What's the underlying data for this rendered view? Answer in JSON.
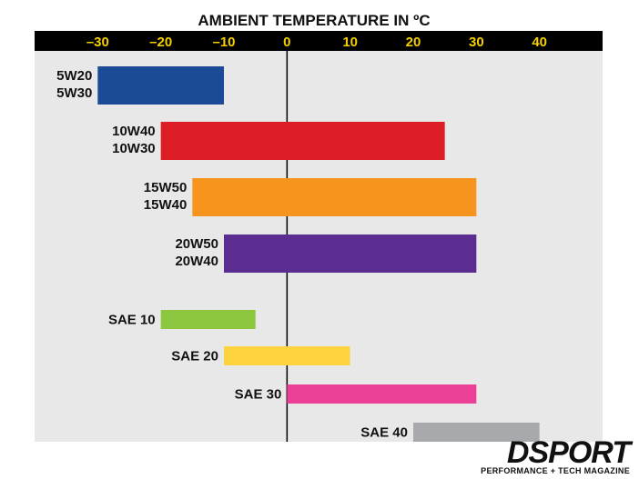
{
  "chart_data": {
    "type": "bar",
    "orientation": "horizontal-range",
    "title": "AMBIENT TEMPERATURE IN ºC",
    "xlim": [
      -40,
      50
    ],
    "ticks": [
      -30,
      -20,
      -10,
      0,
      10,
      20,
      30,
      40
    ],
    "tick_labels": [
      "–30",
      "–20",
      "–10",
      "0",
      "10",
      "20",
      "30",
      "40"
    ],
    "series": [
      {
        "labels": [
          "5W20",
          "5W30"
        ],
        "start": -30,
        "end": -10,
        "color": "#1b4a96"
      },
      {
        "labels": [
          "10W40",
          "10W30"
        ],
        "start": -20,
        "end": 25,
        "color": "#dd1e26"
      },
      {
        "labels": [
          "15W50",
          "15W40"
        ],
        "start": -15,
        "end": 30,
        "color": "#f7941e"
      },
      {
        "labels": [
          "20W50",
          "20W40"
        ],
        "start": -10,
        "end": 30,
        "color": "#5c2d91"
      },
      {
        "labels": [
          "SAE 10"
        ],
        "start": -20,
        "end": -5,
        "color": "#8dc63f"
      },
      {
        "labels": [
          "SAE 20"
        ],
        "start": -10,
        "end": 10,
        "color": "#ffd23f"
      },
      {
        "labels": [
          "SAE 30"
        ],
        "start": 0,
        "end": 30,
        "color": "#ec3f96"
      },
      {
        "labels": [
          "SAE 40"
        ],
        "start": 20,
        "end": 40,
        "color": "#a7a9ac"
      }
    ],
    "colors": {
      "axis_band": "#000000",
      "tick_label": "#f5d000",
      "plot_bg": "#e8e8e8"
    }
  },
  "branding": {
    "name": "DSPORT",
    "tagline": "PERFORMANCE + TECH MAGAZINE"
  }
}
